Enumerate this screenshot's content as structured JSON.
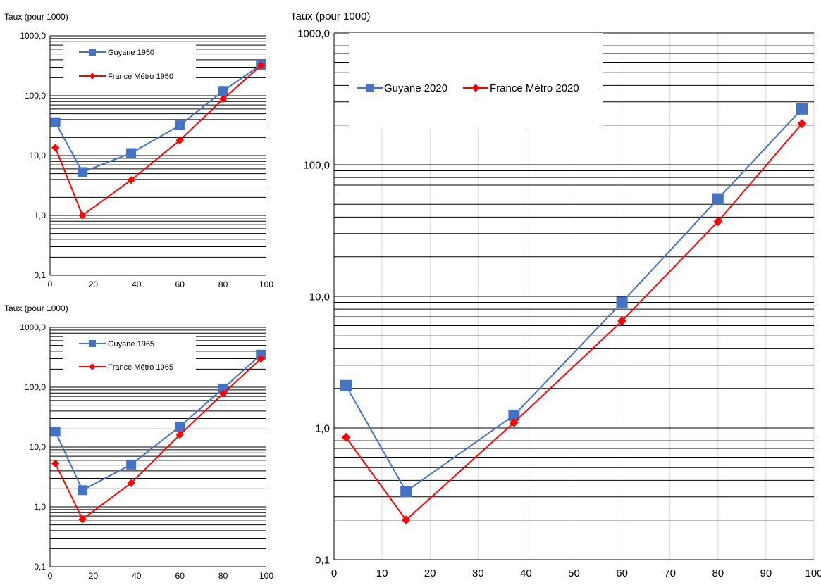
{
  "colors": {
    "guyane": "#4472C4",
    "france": "#FF0000",
    "grid": "#000000",
    "vgrid": "#D9D9D9"
  },
  "chart_data": [
    {
      "type": "line",
      "ylabel": "Taux (pour 1000)",
      "yscale": "log",
      "ylim": [
        0.1,
        1000
      ],
      "yticks": [
        "0,1",
        "1,0",
        "10,0",
        "100,0",
        "1000,0"
      ],
      "xlim": [
        0,
        100
      ],
      "xticks": [
        "0",
        "20",
        "40",
        "60",
        "80",
        "100"
      ],
      "legend_placement": "top-left",
      "series": [
        {
          "name": "Guyane 1950",
          "x": [
            2.5,
            15,
            37.5,
            60,
            80,
            97.5
          ],
          "values": [
            36,
            5.3,
            11,
            32,
            120,
            330
          ]
        },
        {
          "name": "France Métro 1950",
          "x": [
            2.5,
            15,
            37.5,
            60,
            80,
            97.5
          ],
          "values": [
            13.5,
            1.0,
            3.9,
            18,
            88,
            320
          ]
        }
      ]
    },
    {
      "type": "line",
      "ylabel": "Taux (pour 1000)",
      "yscale": "log",
      "ylim": [
        0.1,
        1000
      ],
      "yticks": [
        "0,1",
        "1,0",
        "10,0",
        "100,0",
        "1000,0"
      ],
      "xlim": [
        0,
        100
      ],
      "xticks": [
        "0",
        "20",
        "40",
        "60",
        "80",
        "100"
      ],
      "legend_placement": "top-left",
      "series": [
        {
          "name": "Guyane 1965",
          "x": [
            2.5,
            15,
            37.5,
            60,
            80,
            97.5
          ],
          "values": [
            18,
            1.9,
            5.1,
            22,
            95,
            350
          ]
        },
        {
          "name": "France Métro 1965",
          "x": [
            2.5,
            15,
            37.5,
            60,
            80,
            97.5
          ],
          "values": [
            5.3,
            0.62,
            2.5,
            16,
            78,
            300
          ]
        }
      ]
    },
    {
      "type": "line",
      "ylabel": "Taux (pour 1000)",
      "yscale": "log",
      "ylim": [
        0.1,
        1000
      ],
      "yticks": [
        "0,1",
        "1,0",
        "10,0",
        "100,0",
        "1000,0"
      ],
      "xlim": [
        0,
        100
      ],
      "xticks": [
        "0",
        "10",
        "20",
        "30",
        "40",
        "50",
        "60",
        "70",
        "80",
        "90",
        "100"
      ],
      "legend_placement": "top",
      "series": [
        {
          "name": "Guyane 2020",
          "x": [
            2.5,
            15,
            37.5,
            60,
            80,
            97.5
          ],
          "values": [
            2.1,
            0.33,
            1.25,
            9.0,
            55,
            265
          ]
        },
        {
          "name": "France Métro 2020",
          "x": [
            2.5,
            15,
            37.5,
            60,
            80,
            97.5
          ],
          "values": [
            0.85,
            0.2,
            1.1,
            6.5,
            37,
            205
          ]
        }
      ]
    }
  ]
}
